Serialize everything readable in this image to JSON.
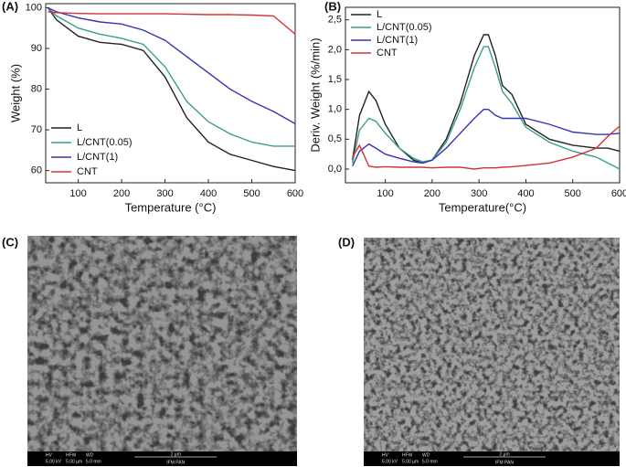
{
  "chart_data": [
    {
      "type": "line",
      "panel": "(A)",
      "xlabel": "Temperature (°C)",
      "ylabel": "Weight (%)",
      "x": [
        30,
        50,
        100,
        150,
        200,
        250,
        300,
        350,
        400,
        450,
        500,
        550,
        600
      ],
      "xlim": [
        25,
        600
      ],
      "xticks": [
        100,
        200,
        300,
        400,
        500,
        600
      ],
      "ylim": [
        57,
        101
      ],
      "yticks": [
        60,
        70,
        80,
        90,
        100
      ],
      "legend": "lower left",
      "series": [
        {
          "name": "L",
          "color": "#222222",
          "values": [
            100,
            97,
            93,
            91.5,
            91,
            89.5,
            83,
            73,
            67,
            64,
            62.5,
            61,
            60
          ]
        },
        {
          "name": "L/CNT(0.05)",
          "color": "#3a9e8f",
          "values": [
            100,
            98,
            95,
            93.5,
            92.5,
            91,
            85.5,
            77,
            72,
            69,
            67,
            66,
            66
          ]
        },
        {
          "name": "L/CNT(1)",
          "color": "#3333bb",
          "values": [
            100,
            99,
            97.5,
            96.5,
            96,
            94.5,
            92,
            88,
            84,
            80,
            77,
            74.5,
            71.5
          ]
        },
        {
          "name": "CNT",
          "color": "#d43333",
          "values": [
            99,
            98.8,
            98.6,
            98.5,
            98.5,
            98.5,
            98.5,
            98.4,
            98.3,
            98.3,
            98.2,
            98,
            93.5
          ]
        }
      ]
    },
    {
      "type": "line",
      "panel": "(B)",
      "xlabel": "Temperature(°C)",
      "ylabel": "Deriv. Weight (%/min)",
      "x": [
        30,
        45,
        65,
        80,
        100,
        130,
        160,
        180,
        200,
        230,
        260,
        290,
        310,
        320,
        335,
        350,
        370,
        400,
        450,
        500,
        550,
        575,
        600
      ],
      "xlim": [
        15,
        600
      ],
      "xticks": [
        100,
        200,
        300,
        400,
        500,
        600
      ],
      "ylim": [
        -0.23,
        2.71
      ],
      "yticks": [
        {
          "value": 0,
          "label": "0,0"
        },
        {
          "value": 0.5,
          "label": "0,5"
        },
        {
          "value": 1,
          "label": "1,0"
        },
        {
          "value": 1.5,
          "label": "1,5"
        },
        {
          "value": 2,
          "label": "2,0"
        },
        {
          "value": 2.5,
          "label": "2,5"
        }
      ],
      "legend": "upper left",
      "series": [
        {
          "name": "L",
          "color": "#222222",
          "values": [
            0.15,
            0.9,
            1.3,
            1.15,
            0.75,
            0.35,
            0.15,
            0.1,
            0.15,
            0.5,
            1.1,
            1.9,
            2.25,
            2.25,
            1.9,
            1.4,
            1.25,
            0.75,
            0.5,
            0.4,
            0.35,
            0.35,
            0.3
          ]
        },
        {
          "name": "L/CNT(0.05)",
          "color": "#3a9e8f",
          "values": [
            0.1,
            0.65,
            0.85,
            0.8,
            0.6,
            0.35,
            0.18,
            0.12,
            0.15,
            0.45,
            1.0,
            1.7,
            2.05,
            2.05,
            1.7,
            1.3,
            1.1,
            0.7,
            0.45,
            0.3,
            0.2,
            0.1,
            0.0
          ]
        },
        {
          "name": "L/CNT(1)",
          "color": "#3333bb",
          "values": [
            0.05,
            0.3,
            0.42,
            0.35,
            0.25,
            0.18,
            0.12,
            0.1,
            0.15,
            0.35,
            0.6,
            0.85,
            1.0,
            1.0,
            0.9,
            0.85,
            0.85,
            0.85,
            0.75,
            0.62,
            0.58,
            0.58,
            0.6
          ]
        },
        {
          "name": "CNT",
          "color": "#d43333",
          "values": [
            0.2,
            0.4,
            0.05,
            0.03,
            0.04,
            0.03,
            0.03,
            0.03,
            0.02,
            0.03,
            0.03,
            0.0,
            0.02,
            0.02,
            0.02,
            0.03,
            0.04,
            0.06,
            0.1,
            0.2,
            0.35,
            0.55,
            0.72
          ]
        }
      ]
    }
  ],
  "images": [
    {
      "panel": "(C)",
      "info": [
        "HV",
        "HFW",
        "WD",
        "5.00 kV",
        "5.00 µm",
        "5.0 mm"
      ],
      "scale": "2 µm",
      "lab": "IFM PAN"
    },
    {
      "panel": "(D)",
      "info": [
        "HV",
        "HFW",
        "WD",
        "5.00 kV",
        "5.00 µm",
        "5.0 mm"
      ],
      "scale": "2 µm",
      "lab": "IFM PAN"
    }
  ]
}
